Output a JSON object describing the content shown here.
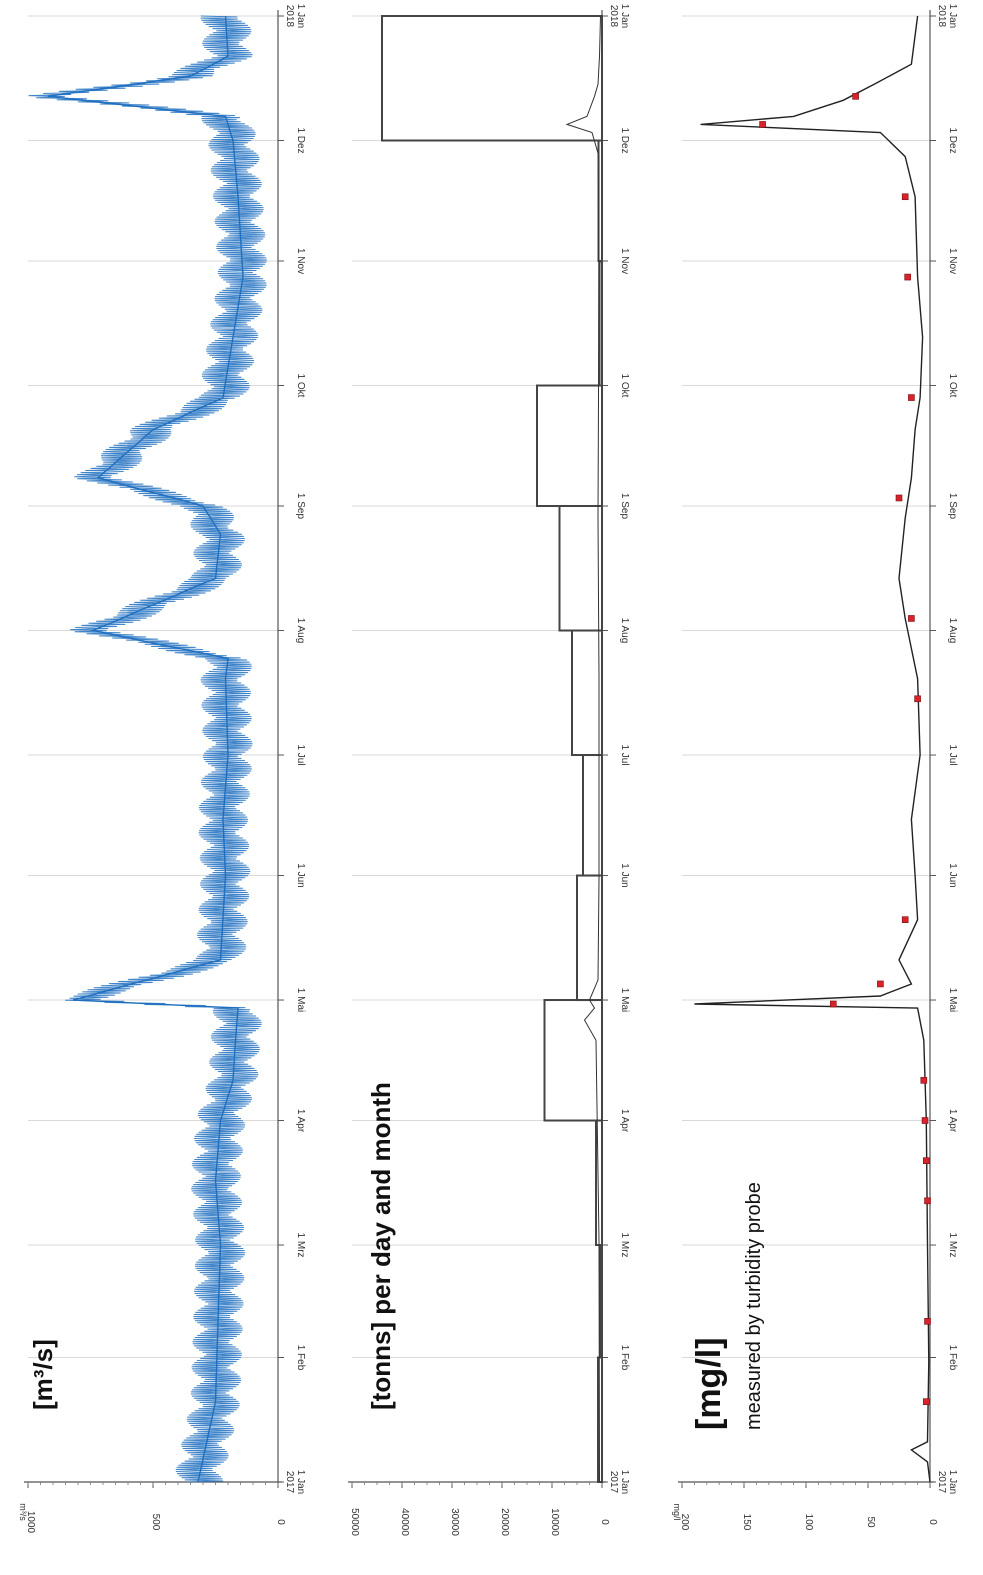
{
  "chart_data": [
    {
      "type": "line",
      "title": "[m³/s]",
      "unit_label": "m³/s",
      "ylim": [
        0,
        1000
      ],
      "y_ticks": [
        "0",
        "500",
        "1000"
      ],
      "x_ticks": [
        "1 Jan\n2017",
        "1 Feb",
        "1 Mrz",
        "1 Apr",
        "1 Mai",
        "1 Jun",
        "1 Jul",
        "1 Aug",
        "1 Sep",
        "1 Okt",
        "1 Nov",
        "1 Dez",
        "1 Jan\n2018"
      ],
      "color": "#1f6fc0",
      "x_day": [
        0,
        20,
        40,
        59,
        75,
        90,
        100,
        110,
        118,
        120,
        130,
        151,
        165,
        181,
        200,
        205,
        212,
        225,
        236,
        243,
        250,
        262,
        270,
        285,
        300,
        320,
        334,
        340,
        345,
        350,
        355,
        365
      ],
      "y": [
        320,
        250,
        240,
        230,
        250,
        230,
        180,
        170,
        160,
        820,
        230,
        210,
        220,
        200,
        210,
        200,
        740,
        250,
        230,
        300,
        720,
        500,
        220,
        180,
        140,
        160,
        180,
        210,
        920,
        350,
        200,
        210
      ]
    },
    {
      "type": "step",
      "title": "[tonns] per day and month",
      "ylim": [
        0,
        50000
      ],
      "y_ticks": [
        "0",
        "10000",
        "20000",
        "30000",
        "40000",
        "50000"
      ],
      "x_ticks": [
        "1 Jan\n2017",
        "1 Feb",
        "1 Mrz",
        "1 Apr",
        "1 Mai",
        "1 Jun",
        "1 Jul",
        "1 Aug",
        "1 Sep",
        "1 Okt",
        "1 Nov",
        "1 Dez",
        "1 Jan\n2018"
      ],
      "color": "#444444",
      "months": [
        "Jan",
        "Feb",
        "Mrz",
        "Apr",
        "Mai",
        "Jun",
        "Jul",
        "Aug",
        "Sep",
        "Okt",
        "Nov",
        "Dez"
      ],
      "monthly_values": [
        800,
        400,
        1200,
        11500,
        5000,
        3800,
        6000,
        8500,
        13000,
        500,
        700,
        44000
      ],
      "daily_x_day": [
        0,
        60,
        110,
        115,
        118,
        120,
        125,
        150,
        200,
        240,
        270,
        330,
        336,
        338,
        340,
        345,
        348,
        355,
        365
      ],
      "daily_y": [
        500,
        600,
        1200,
        3500,
        1500,
        2500,
        800,
        600,
        600,
        800,
        700,
        600,
        2000,
        7000,
        3000,
        1500,
        800,
        500,
        300
      ]
    },
    {
      "type": "line",
      "title": "[mg/l]",
      "subtitle": "measured by turbidity probe",
      "unit_label": "mg/l",
      "ylim": [
        0,
        200
      ],
      "y_ticks": [
        "0",
        "50",
        "100",
        "150",
        "200"
      ],
      "x_ticks": [
        "1 Jan\n2017",
        "1 Feb",
        "1 Mrz",
        "1 Apr",
        "1 Mai",
        "1 Jun",
        "1 Jul",
        "1 Aug",
        "1 Sep",
        "1 Okt",
        "1 Nov",
        "1 Dez",
        "1 Jan\n2018"
      ],
      "color": "#222222",
      "x_day": [
        0,
        5,
        8,
        10,
        30,
        59,
        90,
        110,
        118,
        119,
        121,
        124,
        130,
        140,
        151,
        165,
        181,
        200,
        215,
        225,
        240,
        250,
        262,
        270,
        285,
        300,
        320,
        330,
        336,
        338,
        340,
        344,
        348,
        353,
        365
      ],
      "y": [
        0,
        2,
        15,
        2,
        1,
        2,
        3,
        5,
        10,
        190,
        40,
        15,
        25,
        10,
        12,
        15,
        8,
        10,
        20,
        25,
        20,
        15,
        12,
        8,
        6,
        10,
        12,
        20,
        40,
        185,
        110,
        70,
        45,
        15,
        10
      ],
      "markers_x_day": [
        20,
        40,
        70,
        80,
        90,
        100,
        119,
        124,
        140,
        195,
        215,
        245,
        270,
        300,
        320,
        338,
        345
      ],
      "markers_y": [
        3,
        2,
        2,
        3,
        4,
        5,
        78,
        40,
        20,
        10,
        15,
        25,
        15,
        18,
        20,
        135,
        60
      ],
      "marker_color": "#d8232a"
    }
  ]
}
